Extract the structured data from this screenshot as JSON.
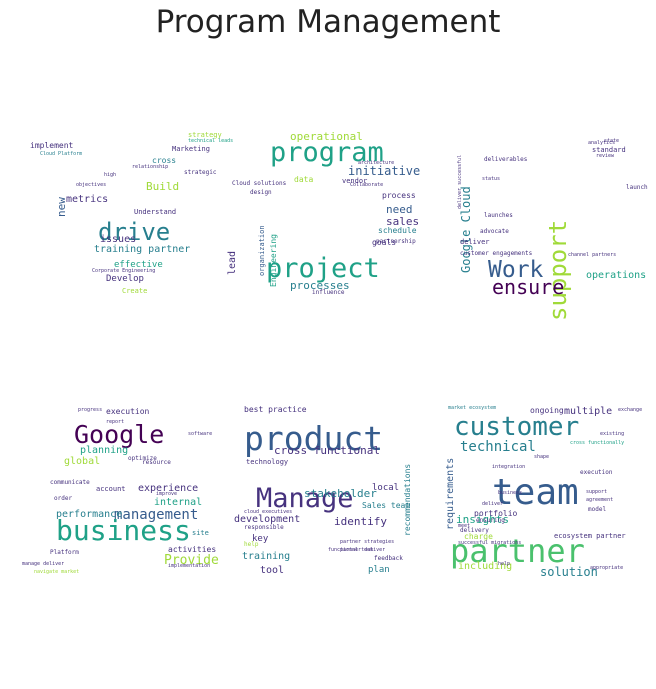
{
  "title": "Program Management",
  "chart_data": {
    "type": "wordcloud",
    "title": "Program Management",
    "clouds": [
      {
        "words": [
          "drive",
          "program",
          "project",
          "initiative",
          "operational",
          "Build",
          "metrics",
          "new",
          "issues",
          "training partner",
          "Develop",
          "effective",
          "implement",
          "strategy",
          "Marketing",
          "cross",
          "relationship",
          "strategic",
          "Understand",
          "technical leads",
          "data",
          "Cloud solutions",
          "design",
          "lead",
          "Engineering",
          "organization",
          "processes",
          "influence",
          "need",
          "sales",
          "process",
          "schedule",
          "goals",
          "partnership",
          "vendor",
          "Collaborate",
          "architecture",
          "Create",
          "Corporate Engineering",
          "Cloud Platform",
          "objectives",
          "high"
        ]
      },
      {
        "words": [
          "support",
          "Work",
          "ensure",
          "Google Cloud",
          "operations",
          "deliver",
          "advocate",
          "customer engagements",
          "channel partners",
          "deliverables",
          "launches",
          "status",
          "standard",
          "launch",
          "review",
          "state",
          "analytics",
          "deliver successful"
        ]
      },
      {
        "words": [
          "Google",
          "business",
          "management",
          "Provide",
          "performance",
          "planning",
          "global",
          "experience",
          "internal",
          "activities",
          "execution",
          "optimize",
          "software",
          "account",
          "communicate",
          "order",
          "site",
          "implementation",
          "Platform",
          "progress",
          "report",
          "resource",
          "improve",
          "manage deliver",
          "navigate market"
        ]
      },
      {
        "words": [
          "product",
          "Manage",
          "cross functional",
          "best practice",
          "stakeholder",
          "identify",
          "development",
          "key",
          "training",
          "tool",
          "local",
          "plan",
          "recommendations",
          "Sales team",
          "technology",
          "responsible",
          "help",
          "feedback",
          "cloud executives",
          "functional team",
          "partner strategies",
          "partner deliver"
        ]
      },
      {
        "words": [
          "customer",
          "team",
          "partner",
          "technical",
          "solution",
          "requirements",
          "insights",
          "including",
          "multiple",
          "ongoing",
          "charge",
          "ecosystem partner",
          "market ecosystem",
          "cross functionally",
          "integration",
          "portfolio",
          "ensuring",
          "delivery",
          "execution",
          "model",
          "agreement",
          "exchange",
          "existing",
          "successful migrations",
          "meet",
          "shape",
          "support",
          "deliver",
          "help",
          "appropriate",
          "business"
        ]
      }
    ]
  }
}
